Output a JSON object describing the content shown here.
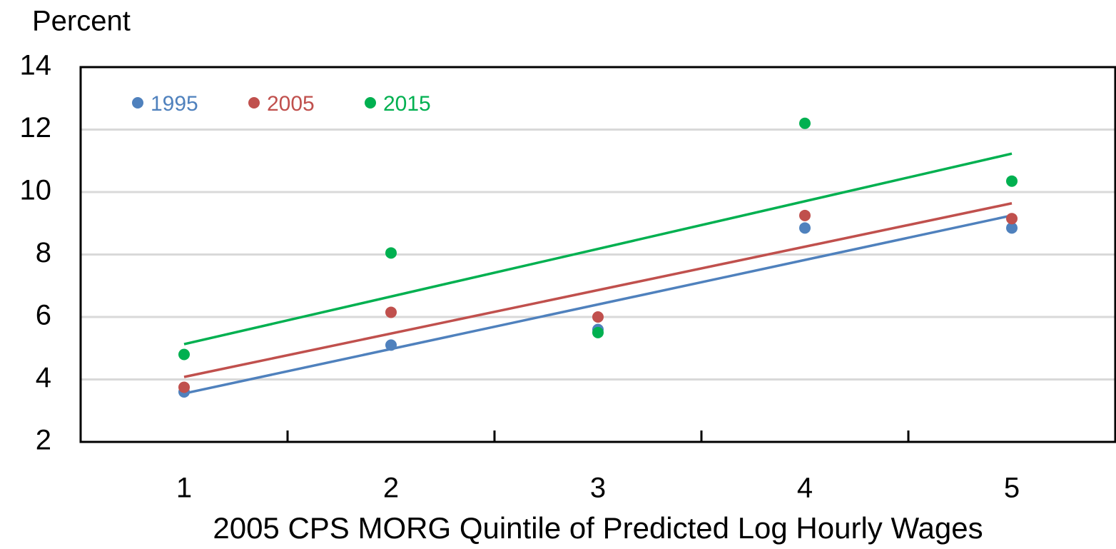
{
  "chart_data": {
    "type": "scatter",
    "y_label": "Percent",
    "x_label": "2005 CPS MORG  Quintile of Predicted Log Hourly Wages",
    "categories": [
      "1",
      "2",
      "3",
      "4",
      "5"
    ],
    "series": [
      {
        "name": "1995",
        "color": "#4f81bd",
        "values": [
          3.6,
          5.1,
          5.6,
          8.85,
          8.85
        ]
      },
      {
        "name": "2005",
        "color": "#c0504d",
        "values": [
          3.75,
          6.15,
          6.0,
          9.25,
          9.15
        ]
      },
      {
        "name": "2015",
        "color": "#00b050",
        "values": [
          4.8,
          8.05,
          5.5,
          12.2,
          10.35
        ]
      }
    ],
    "trendline": "linear",
    "ylim": [
      2,
      14
    ],
    "yticks": [
      2,
      4,
      6,
      8,
      10,
      12,
      14
    ],
    "grid": true,
    "legend": "upper left"
  }
}
